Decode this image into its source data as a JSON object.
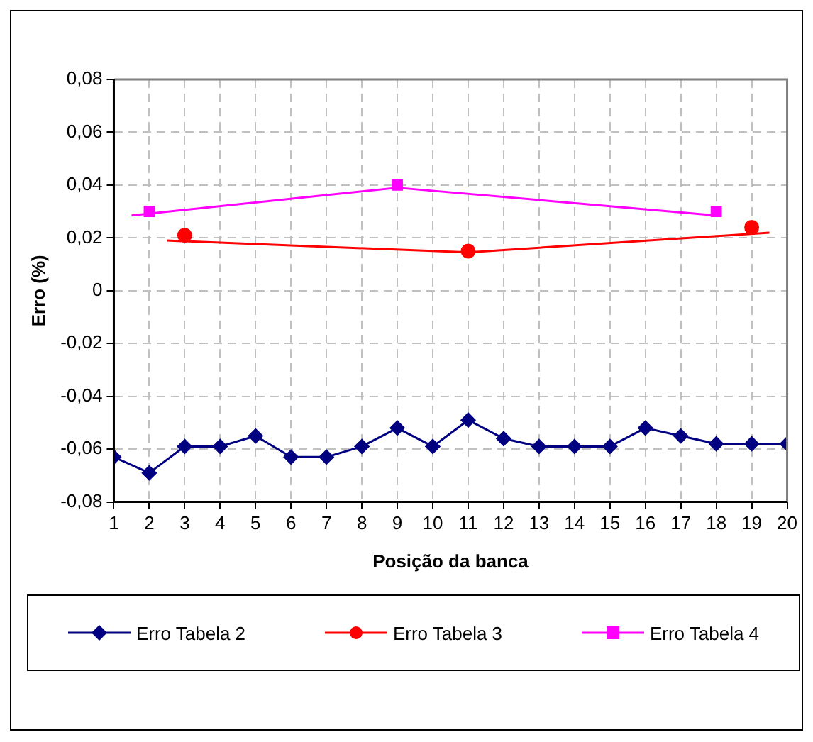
{
  "chart_data": {
    "type": "line",
    "xlabel": "Posição da banca",
    "ylabel": "Erro (%)",
    "xlim": [
      1,
      20
    ],
    "xticks": [
      1,
      2,
      3,
      4,
      5,
      6,
      7,
      8,
      9,
      10,
      11,
      12,
      13,
      14,
      15,
      16,
      17,
      18,
      19,
      20
    ],
    "ylim": [
      -0.08,
      0.08
    ],
    "yticks": [
      {
        "value": -0.08,
        "label": "-0,08"
      },
      {
        "value": -0.06,
        "label": "-0,06"
      },
      {
        "value": -0.04,
        "label": "-0,04"
      },
      {
        "value": -0.02,
        "label": "-0,02"
      },
      {
        "value": 0,
        "label": "0"
      },
      {
        "value": 0.02,
        "label": "0,02"
      },
      {
        "value": 0.04,
        "label": "0,04"
      },
      {
        "value": 0.06,
        "label": "0,06"
      },
      {
        "value": 0.08,
        "label": "0,08"
      }
    ],
    "grid": true,
    "legend": "bottom",
    "line_style": "solid",
    "series": [
      {
        "name": "Erro Tabela 2",
        "marker": "diamond",
        "color": "#000080",
        "x": [
          1,
          2,
          3,
          4,
          5,
          6,
          7,
          8,
          9,
          10,
          11,
          12,
          13,
          14,
          15,
          16,
          17,
          18,
          19,
          20
        ],
        "values": [
          -0.063,
          -0.069,
          -0.059,
          -0.059,
          -0.055,
          -0.063,
          -0.063,
          -0.059,
          -0.052,
          -0.059,
          -0.049,
          -0.056,
          -0.059,
          -0.059,
          -0.059,
          -0.052,
          -0.055,
          -0.058,
          -0.058,
          -0.058
        ]
      },
      {
        "name": "Erro Tabela 3",
        "type": "scatter",
        "marker": "circle",
        "color": "#ff0000",
        "x": [
          3,
          11,
          19
        ],
        "values": [
          0.021,
          0.015,
          0.024
        ]
      },
      {
        "name": "Erro Tabela 4",
        "type": "scatter",
        "marker": "square",
        "color": "#ff00ff",
        "x": [
          2,
          9,
          18
        ],
        "values": [
          0.03,
          0.04,
          0.03
        ]
      },
      {
        "type": "line",
        "marker": "none",
        "color": "#ff0000",
        "x": [
          2.5,
          11,
          19.5
        ],
        "values": [
          0.019,
          0.0145,
          0.022
        ]
      },
      {
        "type": "line",
        "marker": "none",
        "color": "#ff00ff",
        "x": [
          1.5,
          9,
          18
        ],
        "values": [
          0.0285,
          0.039,
          0.0285
        ]
      }
    ]
  }
}
